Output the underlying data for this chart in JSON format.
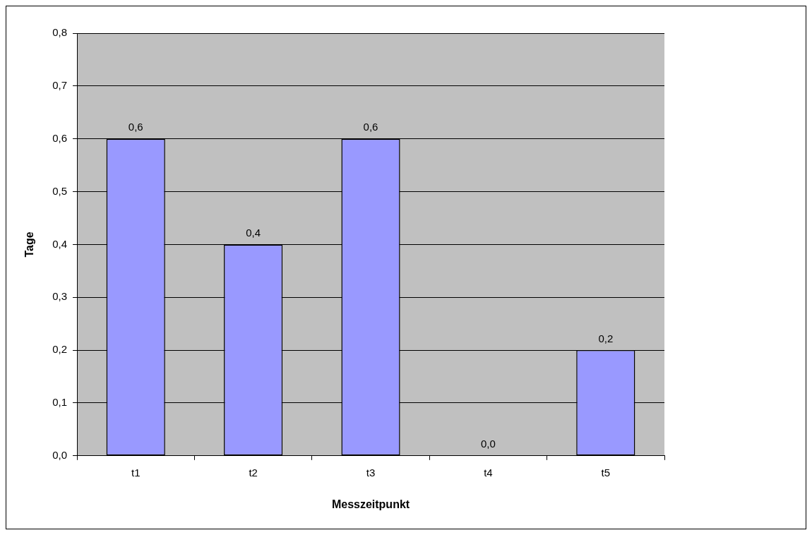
{
  "chart_data": {
    "type": "bar",
    "xlabel": "Messzeitpunkt",
    "ylabel": "Tage",
    "categories": [
      "t1",
      "t2",
      "t3",
      "t4",
      "t5"
    ],
    "values": [
      0.6,
      0.4,
      0.6,
      0.0,
      0.2
    ],
    "value_labels": [
      "0,6",
      "0,4",
      "0,6",
      "0,0",
      "0,2"
    ],
    "color": "#9999ff",
    "ylim": [
      0,
      0.8
    ],
    "yticks": [
      {
        "value": 0,
        "label": "0,0"
      },
      {
        "value": 0.1,
        "label": "0,1"
      },
      {
        "value": 0.2,
        "label": "0,2"
      },
      {
        "value": 0.3,
        "label": "0,3"
      },
      {
        "value": 0.4,
        "label": "0,4"
      },
      {
        "value": 0.5,
        "label": "0,5"
      },
      {
        "value": 0.6,
        "label": "0,6"
      },
      {
        "value": 0.7,
        "label": "0,7"
      },
      {
        "value": 0.8,
        "label": "0,8"
      }
    ],
    "grid": "y",
    "legend": false
  }
}
